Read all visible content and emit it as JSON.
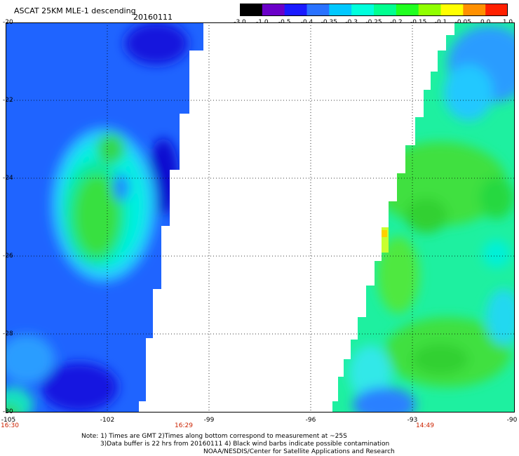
{
  "header": {
    "title": "ASCAT 25KM MLE-1 descending",
    "date": "20160111"
  },
  "color_scale": {
    "labels": [
      "-3.0",
      "-1.0",
      "-0.5",
      "-0.4",
      "-0.35",
      "-0.3",
      "-0.25",
      "-0.2",
      "-0.15",
      "-0.1",
      "-0.05",
      "0.0",
      "1.0"
    ],
    "colors": [
      "#000000",
      "#6a00c8",
      "#1a1aff",
      "#2a72ff",
      "#00c8ff",
      "#00ffdc",
      "#00ff90",
      "#20ff20",
      "#90ff00",
      "#ffff00",
      "#ff9000",
      "#ff2000"
    ]
  },
  "axes": {
    "lon_labels": [
      "-105",
      "-102",
      "-99",
      "-96",
      "-93",
      "-90"
    ],
    "lat_labels": [
      "-20",
      "-22",
      "-24",
      "-26",
      "-28",
      "-30"
    ]
  },
  "pass_times": [
    "16:30",
    "16:29",
    "14:49"
  ],
  "notes": [
    "Note: 1) Times are GMT 2)Times along bottom correspond to measurement at ~25S",
    "3)Data buffer is 22 hrs from 20160111 4) Black wind barbs indicate possible contamination",
    "NOAA/NESDIS/Center for Satellite Applications and Research"
  ]
}
